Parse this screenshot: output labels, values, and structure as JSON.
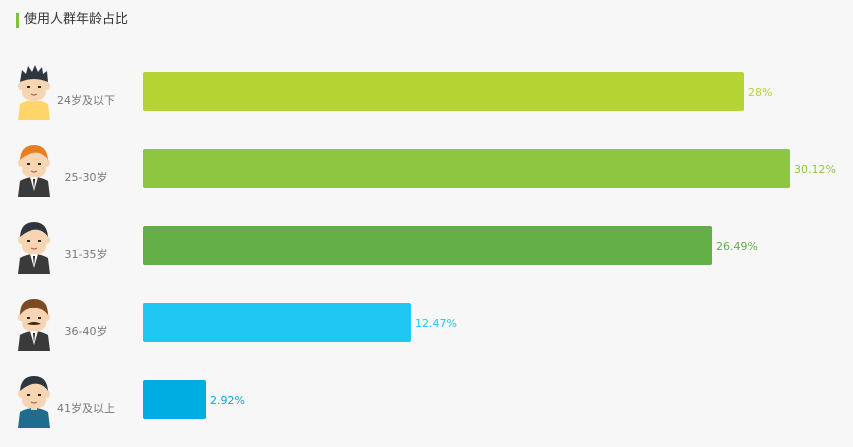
{
  "title": "使用人群年龄占比",
  "colors": {
    "accent": "#7dc23a"
  },
  "chart_data": {
    "type": "bar",
    "orientation": "horizontal",
    "title": "使用人群年龄占比",
    "xlim": [
      0,
      30.12
    ],
    "categories": [
      "24岁及以下",
      "25-30岁",
      "31-35岁",
      "36-40岁",
      "41岁及以上"
    ],
    "values": [
      28,
      30.12,
      26.49,
      12.47,
      2.92
    ],
    "value_labels": [
      "28%",
      "30.12%",
      "26.49%",
      "12.47%",
      "2.92%"
    ],
    "colors": [
      "#b4d433",
      "#8dc63f",
      "#63ae46",
      "#1fc8f2",
      "#00ade2"
    ],
    "icons": [
      "young-man-casual-icon",
      "young-man-orange-hair-suit-icon",
      "man-black-hair-suit-icon",
      "man-mustache-suit-icon",
      "older-man-casual-icon"
    ]
  }
}
